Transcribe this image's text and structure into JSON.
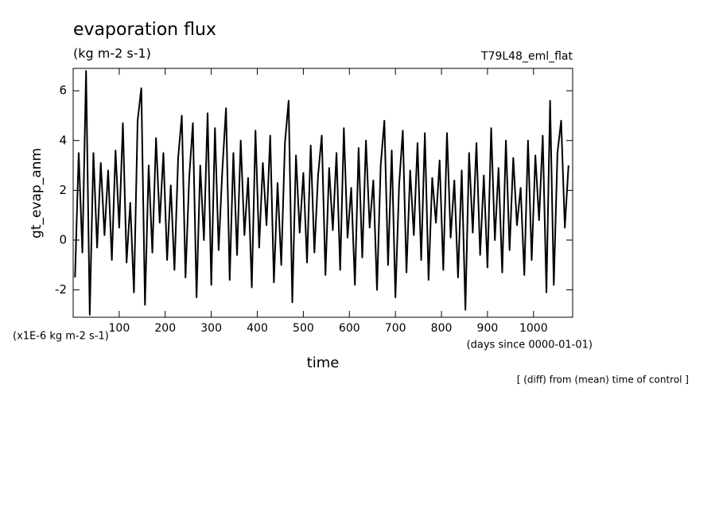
{
  "chart_data": {
    "type": "line",
    "title": "evaporation flux",
    "subtitle": "(kg m-2 s-1)",
    "run_label": "T79L48_eml_flat",
    "y_label": "gt_evap_anm",
    "y_unit": "(x1E-6 kg m-2 s-1)",
    "x_label": "time",
    "x_unit": "(days since 0000-01-01)",
    "note": "[ (diff) from (mean) time of control ]",
    "xlim": [
      0,
      1085
    ],
    "ylim": [
      -3.1,
      6.9
    ],
    "xticks": [
      100,
      200,
      300,
      400,
      500,
      600,
      700,
      800,
      900,
      1000
    ],
    "yticks": [
      -2,
      0,
      2,
      4,
      6
    ],
    "color": "#000000",
    "x": [
      4,
      12,
      20,
      28,
      36,
      44,
      52,
      60,
      68,
      76,
      84,
      92,
      100,
      108,
      116,
      124,
      132,
      140,
      148,
      156,
      164,
      172,
      180,
      188,
      196,
      204,
      212,
      220,
      228,
      236,
      244,
      252,
      260,
      268,
      276,
      284,
      292,
      300,
      308,
      316,
      324,
      332,
      340,
      348,
      356,
      364,
      372,
      380,
      388,
      396,
      404,
      412,
      420,
      428,
      436,
      444,
      452,
      460,
      468,
      476,
      484,
      492,
      500,
      508,
      516,
      524,
      532,
      540,
      548,
      556,
      564,
      572,
      580,
      588,
      596,
      604,
      612,
      620,
      628,
      636,
      644,
      652,
      660,
      668,
      676,
      684,
      692,
      700,
      708,
      716,
      724,
      732,
      740,
      748,
      756,
      764,
      772,
      780,
      788,
      796,
      804,
      812,
      820,
      828,
      836,
      844,
      852,
      860,
      868,
      876,
      884,
      892,
      900,
      908,
      916,
      924,
      932,
      940,
      948,
      956,
      964,
      972,
      980,
      988,
      996,
      1004,
      1012,
      1020,
      1028,
      1036,
      1044,
      1052,
      1060,
      1068,
      1076
    ],
    "values": [
      -1.5,
      3.5,
      -0.5,
      6.8,
      -3.0,
      3.5,
      -0.3,
      3.1,
      0.2,
      2.8,
      -0.8,
      3.6,
      0.5,
      4.7,
      -0.9,
      1.5,
      -2.1,
      4.8,
      6.1,
      -2.6,
      3.0,
      -0.5,
      4.1,
      0.7,
      3.5,
      -0.8,
      2.2,
      -1.2,
      3.3,
      5.0,
      -1.5,
      2.5,
      4.7,
      -2.3,
      3.0,
      0.0,
      5.1,
      -1.8,
      4.5,
      -0.4,
      2.8,
      5.3,
      -1.6,
      3.5,
      -0.6,
      4.0,
      0.2,
      2.5,
      -1.9,
      4.4,
      -0.3,
      3.1,
      0.6,
      4.2,
      -1.7,
      2.3,
      -1.0,
      3.9,
      5.6,
      -2.5,
      3.4,
      0.3,
      2.7,
      -0.9,
      3.8,
      -0.5,
      2.6,
      4.2,
      -1.4,
      2.9,
      0.4,
      3.5,
      -1.2,
      4.5,
      0.1,
      2.1,
      -1.8,
      3.7,
      -0.7,
      4.0,
      0.5,
      2.4,
      -2.0,
      3.0,
      4.8,
      -1.0,
      3.6,
      -2.3,
      2.2,
      4.4,
      -1.3,
      2.8,
      0.2,
      3.9,
      -0.8,
      4.3,
      -1.6,
      2.5,
      0.7,
      3.2,
      -1.2,
      4.3,
      0.1,
      2.4,
      -1.5,
      2.8,
      -2.8,
      3.5,
      0.3,
      3.9,
      -0.6,
      2.6,
      -1.1,
      4.5,
      0.0,
      2.9,
      -1.3,
      4.0,
      -0.4,
      3.3,
      0.6,
      2.1,
      -1.4,
      4.0,
      -0.8,
      3.4,
      0.8,
      4.2,
      -2.1,
      5.6,
      -1.8,
      3.5,
      4.8,
      0.5,
      3.0
    ]
  }
}
